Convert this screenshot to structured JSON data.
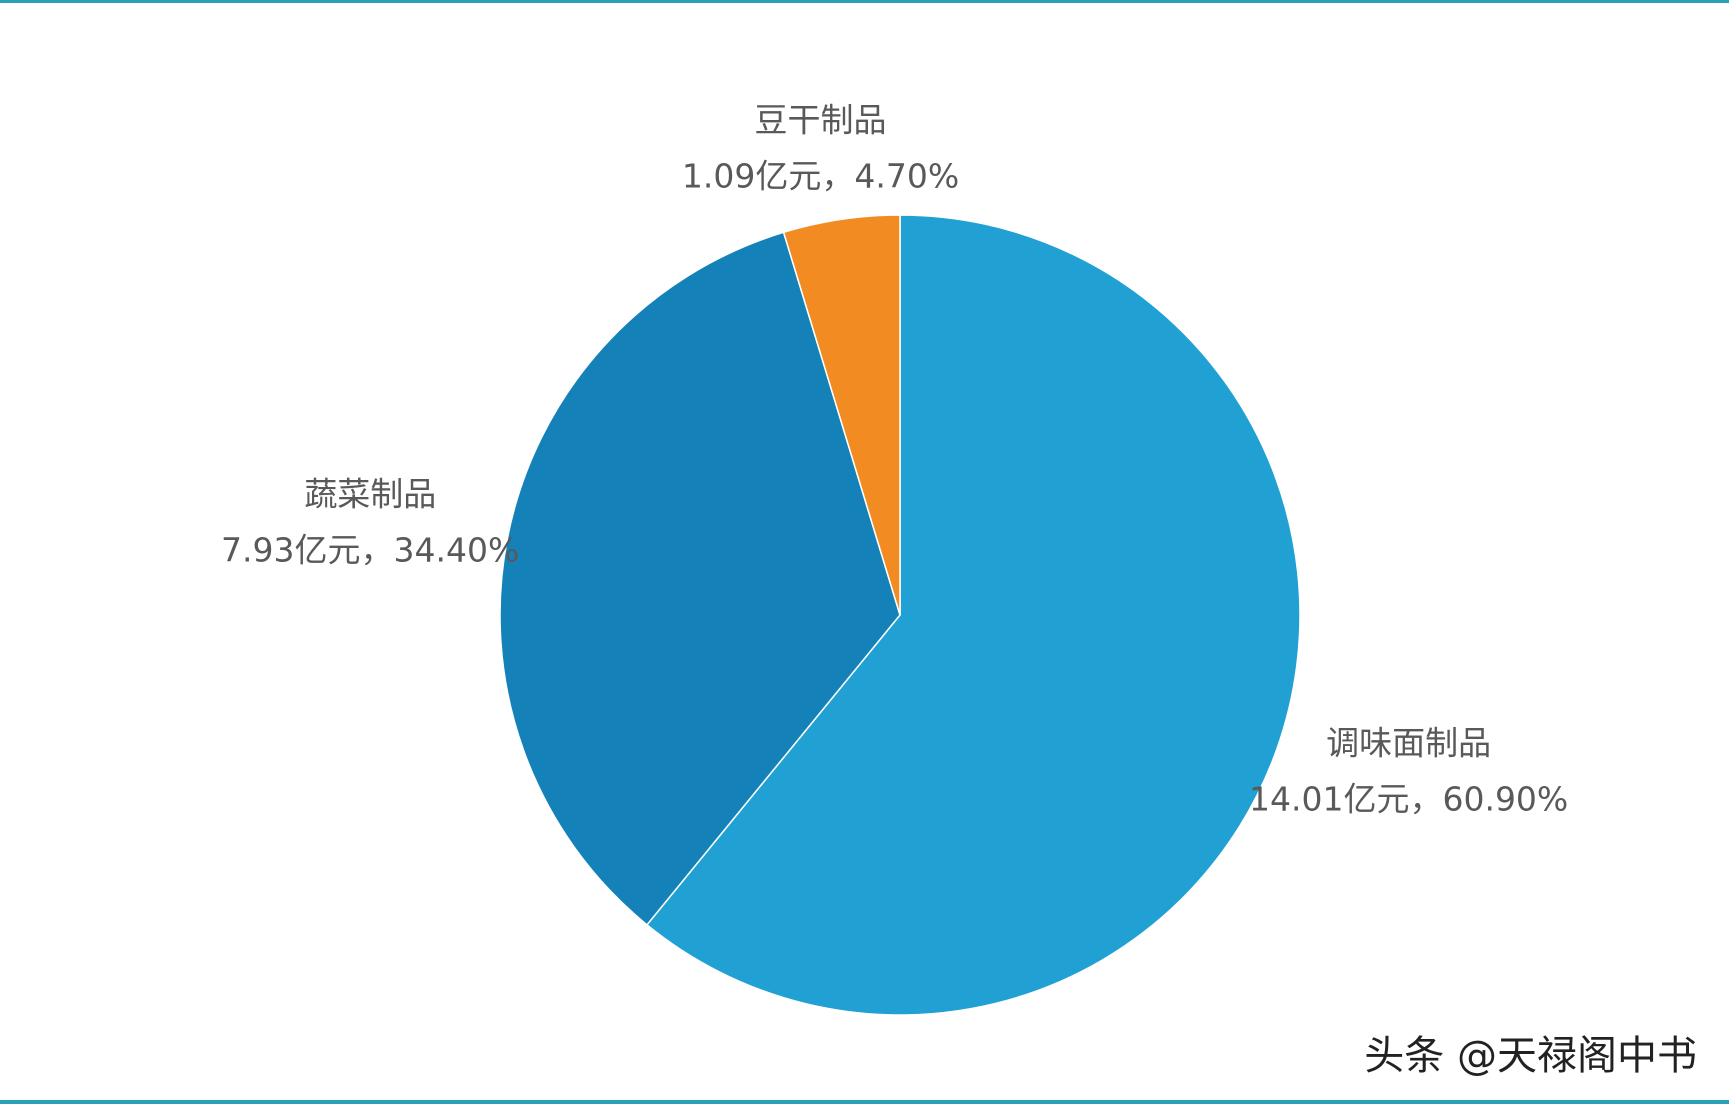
{
  "chart_data": {
    "type": "pie",
    "categories": [
      "调味面制品",
      "蔬菜制品",
      "豆干制品"
    ],
    "values": [
      60.9,
      34.4,
      4.7
    ],
    "value_labels": [
      "14.01亿元，60.90%",
      "7.93亿元，34.40%",
      "1.09亿元，4.70%"
    ],
    "colors": [
      "#21a0d4",
      "#1482b9",
      "#f28c22"
    ]
  },
  "watermark": "头条 @天禄阁中书"
}
